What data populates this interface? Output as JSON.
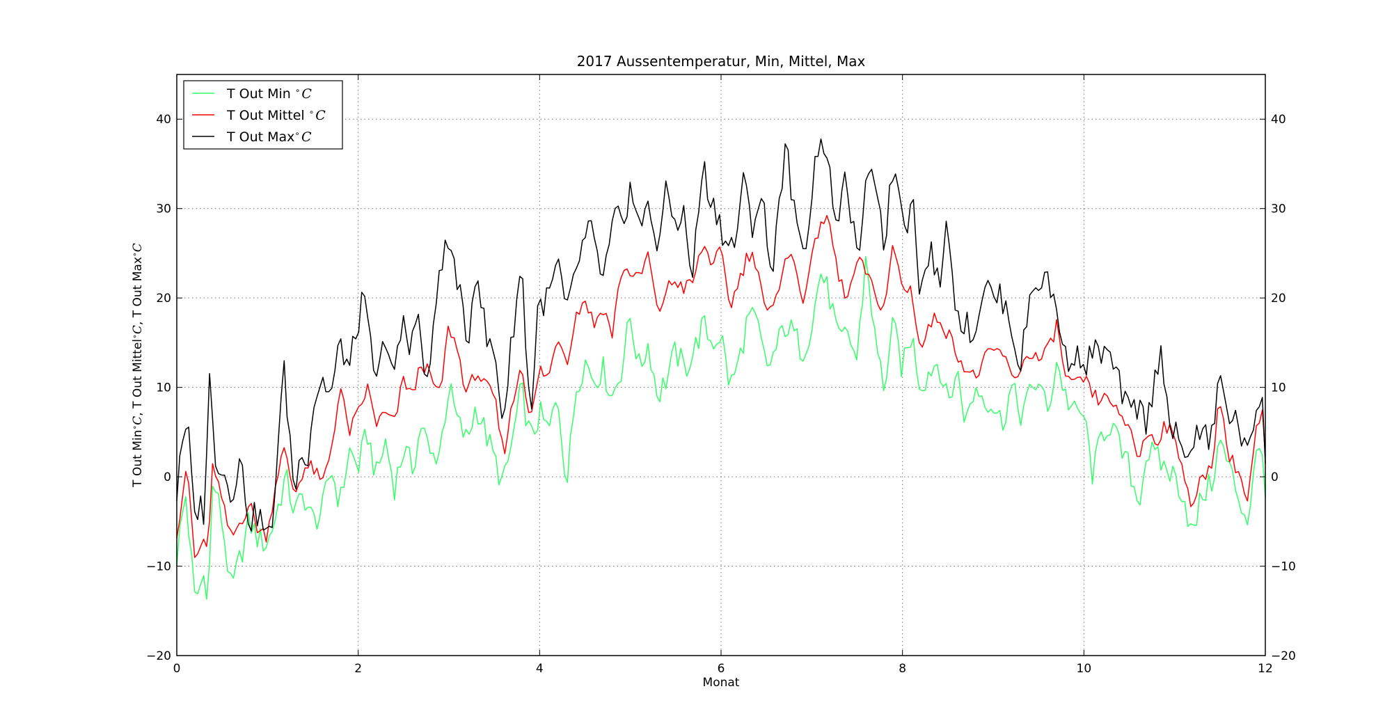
{
  "chart_data": {
    "type": "line",
    "title": "2017 Aussentemperatur, Min, Mittel, Max",
    "xlabel": "Monat",
    "ylabel_parts": [
      "T Out Min",
      "C",
      ", T Out Mittel",
      "C",
      ", T Out Max",
      "C"
    ],
    "xlim": [
      0,
      12
    ],
    "ylim": [
      -20,
      45
    ],
    "x_ticks": [
      0,
      2,
      4,
      6,
      8,
      10,
      12
    ],
    "y_ticks": [
      -20,
      -10,
      0,
      10,
      20,
      30,
      40
    ],
    "grid": true,
    "legend_position": "top-left",
    "series_meta": [
      {
        "name": "T Out Min",
        "unit": "C",
        "color": "#33ff66",
        "legend_separator": " "
      },
      {
        "name": "T Out Mittel",
        "unit": "C",
        "color": "#ff0000",
        "legend_separator": " "
      },
      {
        "name": "T Out Max",
        "unit": "C",
        "color": "#000000",
        "legend_separator": ""
      }
    ],
    "anchors": {
      "max": [
        [
          0,
          -2
        ],
        [
          0.05,
          5
        ],
        [
          0.1,
          4
        ],
        [
          0.14,
          5.5
        ],
        [
          0.18,
          -5
        ],
        [
          0.25,
          -3
        ],
        [
          0.3,
          -4
        ],
        [
          0.36,
          11
        ],
        [
          0.42,
          2.5
        ],
        [
          0.5,
          1
        ],
        [
          0.6,
          -2
        ],
        [
          0.7,
          2
        ],
        [
          0.8,
          -5
        ],
        [
          0.9,
          -4
        ],
        [
          1.0,
          -7
        ],
        [
          1.05,
          -6
        ],
        [
          1.1,
          2
        ],
        [
          1.18,
          12
        ],
        [
          1.25,
          4
        ],
        [
          1.3,
          -2
        ],
        [
          1.38,
          3.5
        ],
        [
          1.45,
          2
        ],
        [
          1.5,
          8
        ],
        [
          1.6,
          11
        ],
        [
          1.7,
          9
        ],
        [
          1.8,
          15
        ],
        [
          1.9,
          12
        ],
        [
          2.05,
          20
        ],
        [
          2.15,
          14
        ],
        [
          2.2,
          10
        ],
        [
          2.3,
          16
        ],
        [
          2.4,
          11
        ],
        [
          2.5,
          18
        ],
        [
          2.55,
          13
        ],
        [
          2.65,
          20
        ],
        [
          2.72,
          11
        ],
        [
          2.8,
          12.5
        ],
        [
          2.9,
          24
        ],
        [
          3.0,
          26
        ],
        [
          3.1,
          22
        ],
        [
          3.2,
          14
        ],
        [
          3.3,
          24
        ],
        [
          3.42,
          15
        ],
        [
          3.5,
          14
        ],
        [
          3.6,
          6
        ],
        [
          3.7,
          16
        ],
        [
          3.8,
          24
        ],
        [
          3.9,
          6
        ],
        [
          3.98,
          19
        ],
        [
          4.1,
          20
        ],
        [
          4.2,
          24
        ],
        [
          4.3,
          18
        ],
        [
          4.42,
          24
        ],
        [
          4.55,
          28
        ],
        [
          4.7,
          22
        ],
        [
          4.85,
          30
        ],
        [
          4.95,
          26
        ],
        [
          5.0,
          34
        ],
        [
          5.1,
          28
        ],
        [
          5.2,
          30
        ],
        [
          5.3,
          26
        ],
        [
          5.4,
          32
        ],
        [
          5.5,
          28
        ],
        [
          5.58,
          30
        ],
        [
          5.68,
          22
        ],
        [
          5.8,
          35
        ],
        [
          5.88,
          31
        ],
        [
          5.98,
          29
        ],
        [
          6.05,
          26
        ],
        [
          6.15,
          26
        ],
        [
          6.25,
          33
        ],
        [
          6.35,
          28
        ],
        [
          6.45,
          32
        ],
        [
          6.55,
          22
        ],
        [
          6.65,
          32
        ],
        [
          6.72,
          37
        ],
        [
          6.85,
          26
        ],
        [
          6.95,
          27
        ],
        [
          7.05,
          36
        ],
        [
          7.1,
          39
        ],
        [
          7.2,
          33
        ],
        [
          7.3,
          28
        ],
        [
          7.38,
          34
        ],
        [
          7.5,
          24
        ],
        [
          7.6,
          32
        ],
        [
          7.7,
          34
        ],
        [
          7.8,
          26
        ],
        [
          7.9,
          35
        ],
        [
          8.05,
          28
        ],
        [
          8.1,
          33
        ],
        [
          8.2,
          20
        ],
        [
          8.3,
          26
        ],
        [
          8.4,
          21
        ],
        [
          8.5,
          29
        ],
        [
          8.6,
          18
        ],
        [
          8.7,
          17
        ],
        [
          8.8,
          16
        ],
        [
          8.9,
          22
        ],
        [
          9.0,
          20
        ],
        [
          9.1,
          20
        ],
        [
          9.2,
          17
        ],
        [
          9.3,
          12
        ],
        [
          9.4,
          20
        ],
        [
          9.5,
          22
        ],
        [
          9.6,
          22
        ],
        [
          9.72,
          18
        ],
        [
          9.8,
          13
        ],
        [
          9.9,
          14
        ],
        [
          10.0,
          12
        ],
        [
          10.1,
          14
        ],
        [
          10.2,
          14
        ],
        [
          10.3,
          13
        ],
        [
          10.4,
          10
        ],
        [
          10.5,
          7
        ],
        [
          10.6,
          8
        ],
        [
          10.7,
          6
        ],
        [
          10.85,
          15
        ],
        [
          10.95,
          5
        ],
        [
          11.0,
          5
        ],
        [
          11.1,
          2
        ],
        [
          11.2,
          4
        ],
        [
          11.3,
          5
        ],
        [
          11.4,
          4
        ],
        [
          11.5,
          11
        ],
        [
          11.6,
          7
        ],
        [
          11.7,
          6
        ],
        [
          11.8,
          2
        ],
        [
          11.9,
          8
        ],
        [
          11.97,
          9
        ],
        [
          12.0,
          3
        ]
      ],
      "mittel": [
        [
          0,
          -6
        ],
        [
          0.05,
          -3
        ],
        [
          0.1,
          1
        ],
        [
          0.15,
          -3
        ],
        [
          0.2,
          -9.5
        ],
        [
          0.3,
          -7
        ],
        [
          0.35,
          -8
        ],
        [
          0.4,
          2
        ],
        [
          0.5,
          -3
        ],
        [
          0.6,
          -7
        ],
        [
          0.7,
          -5
        ],
        [
          0.8,
          -3
        ],
        [
          0.9,
          -6
        ],
        [
          1.0,
          -6.5
        ],
        [
          1.1,
          0
        ],
        [
          1.18,
          3
        ],
        [
          1.3,
          -2
        ],
        [
          1.4,
          1
        ],
        [
          1.5,
          1
        ],
        [
          1.6,
          -1
        ],
        [
          1.7,
          3
        ],
        [
          1.8,
          10
        ],
        [
          1.9,
          5
        ],
        [
          2.0,
          7
        ],
        [
          2.1,
          10
        ],
        [
          2.2,
          6
        ],
        [
          2.3,
          7
        ],
        [
          2.4,
          6
        ],
        [
          2.5,
          11
        ],
        [
          2.6,
          9
        ],
        [
          2.7,
          13
        ],
        [
          2.8,
          11
        ],
        [
          2.9,
          9
        ],
        [
          3.0,
          17
        ],
        [
          3.1,
          14
        ],
        [
          3.2,
          9
        ],
        [
          3.3,
          12
        ],
        [
          3.4,
          10
        ],
        [
          3.5,
          9
        ],
        [
          3.6,
          2.5
        ],
        [
          3.7,
          8
        ],
        [
          3.8,
          13
        ],
        [
          3.9,
          6
        ],
        [
          4.0,
          12
        ],
        [
          4.1,
          11
        ],
        [
          4.2,
          16
        ],
        [
          4.3,
          13
        ],
        [
          4.4,
          18
        ],
        [
          4.5,
          20
        ],
        [
          4.6,
          17
        ],
        [
          4.7,
          19
        ],
        [
          4.8,
          16
        ],
        [
          4.9,
          23
        ],
        [
          5.0,
          23
        ],
        [
          5.1,
          22
        ],
        [
          5.2,
          25
        ],
        [
          5.3,
          18
        ],
        [
          5.4,
          21
        ],
        [
          5.5,
          22
        ],
        [
          5.6,
          21
        ],
        [
          5.7,
          22
        ],
        [
          5.8,
          26
        ],
        [
          5.9,
          24
        ],
        [
          6.0,
          25
        ],
        [
          6.1,
          19
        ],
        [
          6.2,
          22
        ],
        [
          6.3,
          25
        ],
        [
          6.4,
          24
        ],
        [
          6.5,
          18
        ],
        [
          6.6,
          19
        ],
        [
          6.7,
          25
        ],
        [
          6.8,
          24
        ],
        [
          6.9,
          20
        ],
        [
          7.0,
          24
        ],
        [
          7.1,
          29
        ],
        [
          7.2,
          28
        ],
        [
          7.3,
          22
        ],
        [
          7.4,
          20
        ],
        [
          7.5,
          24
        ],
        [
          7.6,
          23
        ],
        [
          7.7,
          20
        ],
        [
          7.8,
          19
        ],
        [
          7.9,
          26
        ],
        [
          8.0,
          21
        ],
        [
          8.1,
          21
        ],
        [
          8.2,
          14
        ],
        [
          8.3,
          17
        ],
        [
          8.4,
          18
        ],
        [
          8.5,
          16
        ],
        [
          8.6,
          14
        ],
        [
          8.7,
          12
        ],
        [
          8.8,
          11
        ],
        [
          8.9,
          13
        ],
        [
          9.0,
          14
        ],
        [
          9.1,
          14
        ],
        [
          9.2,
          11
        ],
        [
          9.3,
          12
        ],
        [
          9.4,
          14
        ],
        [
          9.5,
          13
        ],
        [
          9.6,
          14
        ],
        [
          9.7,
          17
        ],
        [
          9.8,
          11
        ],
        [
          9.9,
          10
        ],
        [
          10.0,
          11
        ],
        [
          10.1,
          9
        ],
        [
          10.2,
          8.5
        ],
        [
          10.3,
          9
        ],
        [
          10.4,
          6
        ],
        [
          10.5,
          6
        ],
        [
          10.6,
          2
        ],
        [
          10.7,
          5
        ],
        [
          10.8,
          4
        ],
        [
          10.9,
          6
        ],
        [
          11.0,
          4
        ],
        [
          11.1,
          1
        ],
        [
          11.2,
          -4
        ],
        [
          11.3,
          0
        ],
        [
          11.4,
          1
        ],
        [
          11.5,
          9
        ],
        [
          11.6,
          2
        ],
        [
          11.7,
          1
        ],
        [
          11.8,
          -3
        ],
        [
          11.9,
          5
        ],
        [
          11.97,
          7
        ],
        [
          12.0,
          2
        ]
      ],
      "min": [
        [
          0,
          -9
        ],
        [
          0.05,
          -5
        ],
        [
          0.1,
          -2
        ],
        [
          0.15,
          -8
        ],
        [
          0.2,
          -14
        ],
        [
          0.3,
          -11
        ],
        [
          0.35,
          -13
        ],
        [
          0.4,
          0
        ],
        [
          0.5,
          -5
        ],
        [
          0.6,
          -13
        ],
        [
          0.7,
          -9
        ],
        [
          0.8,
          -5
        ],
        [
          0.9,
          -7
        ],
        [
          1.0,
          -7.5
        ],
        [
          1.1,
          -4
        ],
        [
          1.2,
          0
        ],
        [
          1.3,
          -4
        ],
        [
          1.4,
          -2
        ],
        [
          1.5,
          -5
        ],
        [
          1.6,
          -4
        ],
        [
          1.7,
          1
        ],
        [
          1.8,
          -3
        ],
        [
          1.9,
          3
        ],
        [
          2.0,
          1
        ],
        [
          2.1,
          5
        ],
        [
          2.2,
          0
        ],
        [
          2.3,
          4
        ],
        [
          2.4,
          -1
        ],
        [
          2.5,
          3
        ],
        [
          2.6,
          1
        ],
        [
          2.7,
          6
        ],
        [
          2.8,
          2
        ],
        [
          2.9,
          3
        ],
        [
          3.0,
          10
        ],
        [
          3.1,
          6
        ],
        [
          3.2,
          4
        ],
        [
          3.3,
          8
        ],
        [
          3.4,
          5
        ],
        [
          3.5,
          2
        ],
        [
          3.6,
          -1
        ],
        [
          3.7,
          4
        ],
        [
          3.8,
          10
        ],
        [
          3.9,
          4
        ],
        [
          4.0,
          7
        ],
        [
          4.1,
          5
        ],
        [
          4.2,
          9
        ],
        [
          4.3,
          -1
        ],
        [
          4.4,
          10
        ],
        [
          4.5,
          13
        ],
        [
          4.6,
          11
        ],
        [
          4.7,
          12
        ],
        [
          4.8,
          9
        ],
        [
          4.9,
          12
        ],
        [
          5.0,
          18
        ],
        [
          5.1,
          12
        ],
        [
          5.2,
          15
        ],
        [
          5.3,
          9
        ],
        [
          5.4,
          11
        ],
        [
          5.5,
          14
        ],
        [
          5.6,
          12
        ],
        [
          5.7,
          14
        ],
        [
          5.8,
          17
        ],
        [
          5.9,
          15
        ],
        [
          6.0,
          16
        ],
        [
          6.1,
          10
        ],
        [
          6.2,
          13
        ],
        [
          6.3,
          18
        ],
        [
          6.4,
          17
        ],
        [
          6.5,
          12
        ],
        [
          6.6,
          14
        ],
        [
          6.7,
          17
        ],
        [
          6.8,
          16
        ],
        [
          6.9,
          14
        ],
        [
          7.0,
          17
        ],
        [
          7.1,
          23
        ],
        [
          7.2,
          20
        ],
        [
          7.3,
          15
        ],
        [
          7.4,
          16
        ],
        [
          7.5,
          13
        ],
        [
          7.6,
          25
        ],
        [
          7.7,
          15
        ],
        [
          7.8,
          10
        ],
        [
          7.9,
          17
        ],
        [
          8.0,
          12
        ],
        [
          8.1,
          16
        ],
        [
          8.2,
          10
        ],
        [
          8.3,
          12
        ],
        [
          8.4,
          13
        ],
        [
          8.5,
          8
        ],
        [
          8.6,
          12
        ],
        [
          8.7,
          6
        ],
        [
          8.8,
          10
        ],
        [
          8.9,
          9
        ],
        [
          9.0,
          8
        ],
        [
          9.1,
          6
        ],
        [
          9.2,
          10
        ],
        [
          9.3,
          7
        ],
        [
          9.4,
          9
        ],
        [
          9.5,
          11
        ],
        [
          9.6,
          7
        ],
        [
          9.7,
          13
        ],
        [
          9.8,
          9
        ],
        [
          9.9,
          7
        ],
        [
          10.0,
          7
        ],
        [
          10.1,
          0
        ],
        [
          10.2,
          5
        ],
        [
          10.3,
          6
        ],
        [
          10.4,
          3
        ],
        [
          10.5,
          1
        ],
        [
          10.6,
          -3
        ],
        [
          10.7,
          3
        ],
        [
          10.8,
          2
        ],
        [
          10.9,
          1
        ],
        [
          11.0,
          0
        ],
        [
          11.1,
          -2
        ],
        [
          11.2,
          -7
        ],
        [
          11.3,
          -2
        ],
        [
          11.4,
          -1
        ],
        [
          11.5,
          4
        ],
        [
          11.6,
          1
        ],
        [
          11.7,
          -2
        ],
        [
          11.8,
          -5
        ],
        [
          11.9,
          2
        ],
        [
          11.97,
          4
        ],
        [
          12.0,
          -2
        ]
      ]
    }
  }
}
